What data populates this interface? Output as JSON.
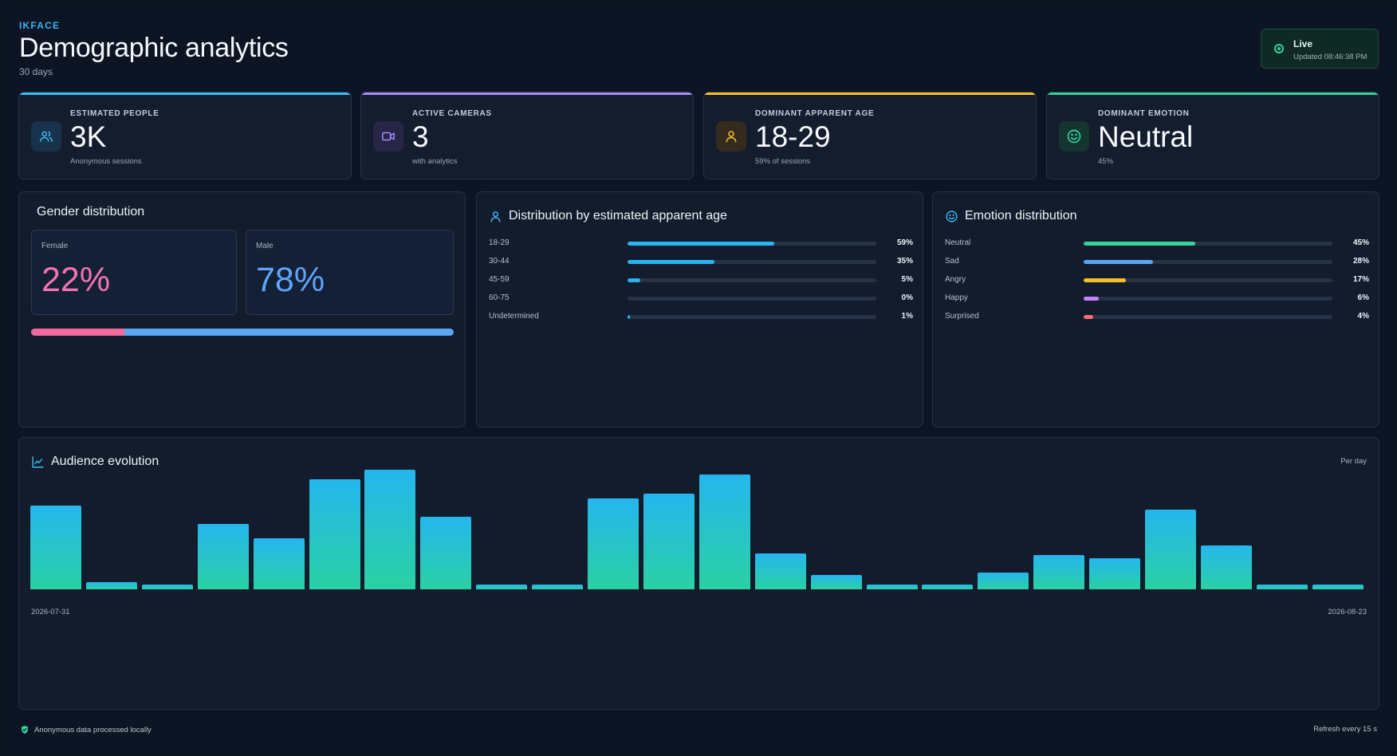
{
  "header": {
    "brand": "IKFACE",
    "title": "Demographic analytics",
    "period": "30 days"
  },
  "live": {
    "label": "Live",
    "updated": "Updated 08:46:38 PM"
  },
  "kpis": [
    {
      "label": "ESTIMATED PEOPLE",
      "value": "3K",
      "sub": "Anonymous sessions",
      "color": "#38bdf8",
      "icon": "users-icon"
    },
    {
      "label": "ACTIVE CAMERAS",
      "value": "3",
      "sub": "with analytics",
      "color": "#a78bfa",
      "icon": "video-camera-icon"
    },
    {
      "label": "DOMINANT APPARENT AGE",
      "value": "18-29",
      "sub": "59% of sessions",
      "color": "#fbbf24",
      "icon": "user-icon"
    },
    {
      "label": "DOMINANT EMOTION",
      "value": "Neutral",
      "sub": "45%",
      "color": "#34d399",
      "icon": "smile-icon"
    }
  ],
  "gender": {
    "title": "Gender distribution",
    "female": {
      "label": "Female",
      "value": "22%",
      "pct": 22,
      "color": "#f472b6"
    },
    "male": {
      "label": "Male",
      "value": "78%",
      "pct": 78,
      "color": "#60a5fa"
    }
  },
  "age": {
    "title": "Distribution by estimated apparent age",
    "rows": [
      {
        "label": "18-29",
        "value": "59%",
        "pct": 59
      },
      {
        "label": "30-44",
        "value": "35%",
        "pct": 35
      },
      {
        "label": "45-59",
        "value": "5%",
        "pct": 5
      },
      {
        "label": "60-75",
        "value": "0%",
        "pct": 0
      },
      {
        "label": "Undetermined",
        "value": "1%",
        "pct": 1
      }
    ],
    "color": "#2bb3f0"
  },
  "emotion": {
    "title": "Emotion distribution",
    "rows": [
      {
        "label": "Neutral",
        "value": "45%",
        "pct": 45,
        "color": "#34d399"
      },
      {
        "label": "Sad",
        "value": "28%",
        "pct": 28,
        "color": "#5aa7f0"
      },
      {
        "label": "Angry",
        "value": "17%",
        "pct": 17,
        "color": "#fbbf24"
      },
      {
        "label": "Happy",
        "value": "6%",
        "pct": 6,
        "color": "#c084fc"
      },
      {
        "label": "Surprised",
        "value": "4%",
        "pct": 4,
        "color": "#f87171"
      }
    ]
  },
  "audience": {
    "title": "Audience evolution",
    "granularity": "Per day",
    "start_label": "2026-07-31",
    "end_label": "2026-08-23"
  },
  "chart_data": {
    "type": "bar",
    "title": "Audience evolution",
    "categories_note": "",
    "x_start": "2026-07-31",
    "x_end": "2026-08-23",
    "values": [
      70,
      6,
      4,
      55,
      43,
      92,
      100,
      61,
      4,
      4,
      76,
      80,
      96,
      30,
      12,
      4,
      4,
      14,
      29,
      26,
      67,
      37,
      4,
      4
    ],
    "ylim": [
      0,
      100
    ],
    "grid": false,
    "legend": "none"
  },
  "footer": {
    "privacy": "Anonymous data processed locally",
    "refresh": "Refresh every 15 s"
  }
}
